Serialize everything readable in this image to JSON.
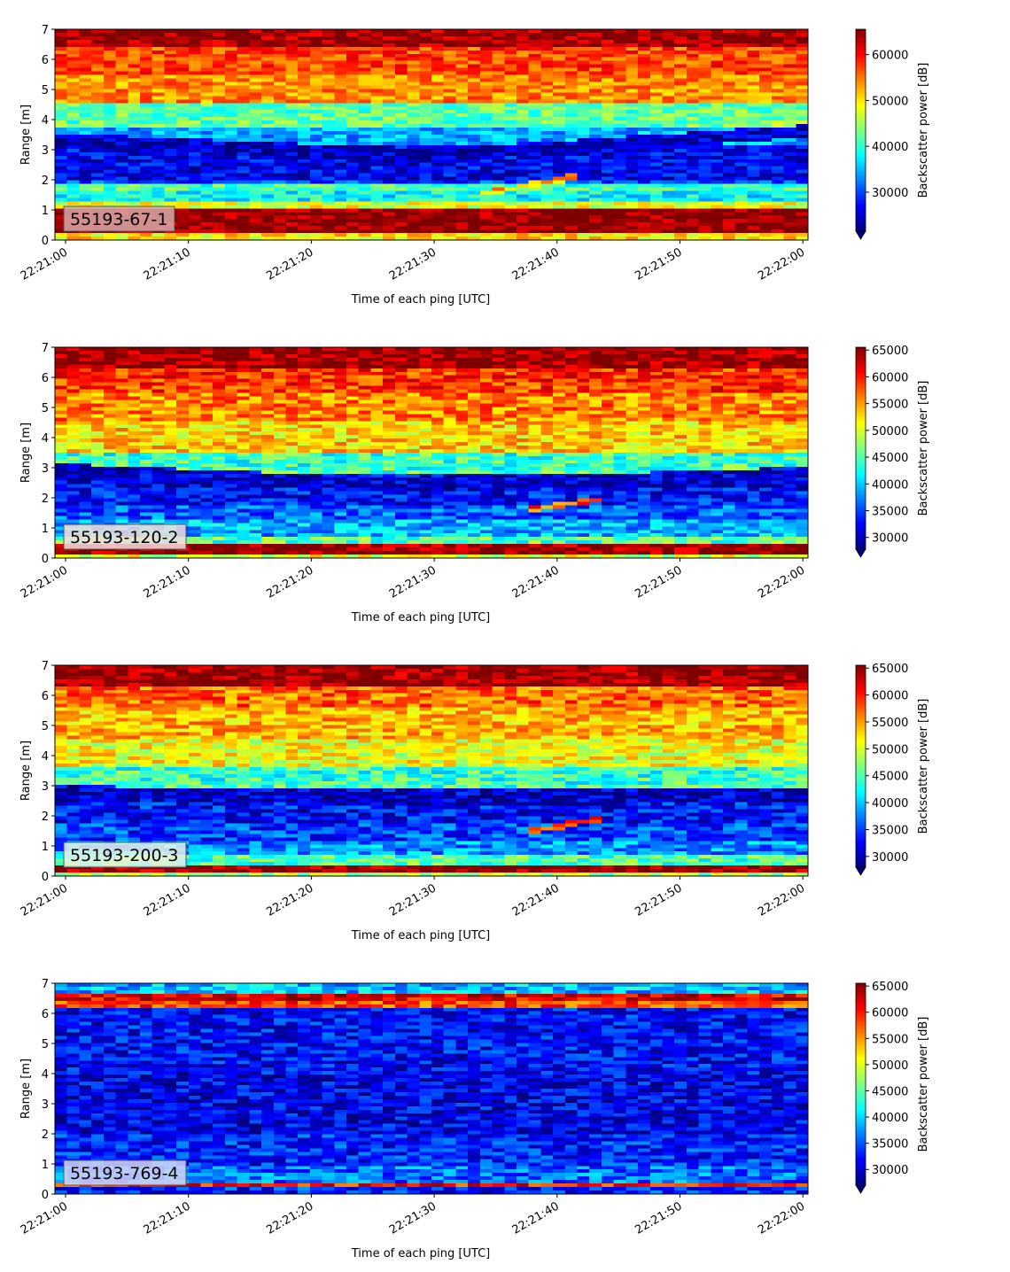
{
  "colormap": "jet",
  "colors": {
    "jet": [
      "#00007f",
      "#0000ff",
      "#007fff",
      "#00ffff",
      "#7fff7f",
      "#ffff00",
      "#ff7f00",
      "#ff0000",
      "#7f0000"
    ],
    "label_box_background": "#ffffff",
    "label_box_border": "#555555"
  },
  "chart_data": [
    {
      "type": "heatmap",
      "label": "55193-67-1",
      "label_box_color": "#dba8a8",
      "xlabel": "Time of each ping [UTC]",
      "ylabel": "Range [m]",
      "xticks": [
        "22:21:00",
        "22:21:10",
        "22:21:20",
        "22:21:30",
        "22:21:40",
        "22:21:50",
        "22:22:00"
      ],
      "yticks": [
        0,
        1,
        2,
        3,
        4,
        5,
        6,
        7
      ],
      "ylim": [
        0,
        7
      ],
      "colorbar_label": "Backscatter power [dB]",
      "colorbar_ticks": [
        30000,
        40000,
        50000,
        60000
      ],
      "clim": [
        21500,
        65535
      ],
      "bands": [
        {
          "y": [
            0.0,
            0.25
          ],
          "value": 50000
        },
        {
          "y": [
            0.25,
            1.05
          ],
          "value": 65000
        },
        {
          "y": [
            1.05,
            1.3
          ],
          "value": 48000
        },
        {
          "y": [
            1.3,
            1.65
          ],
          "value": 38000
        },
        {
          "y": [
            1.65,
            1.85
          ],
          "value": 41000
        },
        {
          "y": [
            1.85,
            2.0
          ],
          "value": 30000
        },
        {
          "y": [
            2.0,
            3.2
          ],
          "value": 26500
        },
        {
          "y": [
            3.2,
            3.7
          ],
          "value": 34500
        },
        {
          "y": [
            3.7,
            4.5
          ],
          "value": 42000
        },
        {
          "y": [
            4.5,
            5.5
          ],
          "value": 54000
        },
        {
          "y": [
            5.5,
            6.4
          ],
          "value": 57000
        },
        {
          "y": [
            6.4,
            7.0
          ],
          "value": 64000
        }
      ],
      "arc": {
        "times": [
          "22:21:00",
          "22:21:30",
          "22:22:00"
        ],
        "ranges": [
          3.3,
          2.8,
          3.6
        ],
        "value": 24500
      },
      "streak": {
        "times": [
          "22:21:34",
          "22:21:42"
        ],
        "ranges": [
          1.55,
          2.15
        ],
        "value": 52000
      }
    },
    {
      "type": "heatmap",
      "label": "55193-120-2",
      "label_box_color": "#f3dede",
      "xlabel": "Time of each ping [UTC]",
      "ylabel": "Range [m]",
      "xticks": [
        "22:21:00",
        "22:21:10",
        "22:21:20",
        "22:21:30",
        "22:21:40",
        "22:21:50",
        "22:22:00"
      ],
      "yticks": [
        0,
        1,
        2,
        3,
        4,
        5,
        6,
        7
      ],
      "ylim": [
        0,
        7
      ],
      "colorbar_label": "Backscatter power [dB]",
      "colorbar_ticks": [
        30000,
        35000,
        40000,
        45000,
        50000,
        55000,
        60000,
        65000
      ],
      "clim": [
        27800,
        65535
      ],
      "bands": [
        {
          "y": [
            0.0,
            0.15
          ],
          "value": 50000
        },
        {
          "y": [
            0.15,
            0.45
          ],
          "value": 65000
        },
        {
          "y": [
            0.45,
            0.75
          ],
          "value": 45000
        },
        {
          "y": [
            0.75,
            1.3
          ],
          "value": 39000
        },
        {
          "y": [
            1.3,
            1.8
          ],
          "value": 36000
        },
        {
          "y": [
            1.8,
            2.3
          ],
          "value": 33000
        },
        {
          "y": [
            2.3,
            2.8
          ],
          "value": 31000
        },
        {
          "y": [
            2.8,
            3.5
          ],
          "value": 44000
        },
        {
          "y": [
            3.5,
            4.5
          ],
          "value": 53000
        },
        {
          "y": [
            4.5,
            5.5
          ],
          "value": 56000
        },
        {
          "y": [
            5.5,
            6.3
          ],
          "value": 59000
        },
        {
          "y": [
            6.3,
            7.0
          ],
          "value": 65000
        }
      ],
      "arc": {
        "times": [
          "22:21:00",
          "22:21:30",
          "22:22:00"
        ],
        "ranges": [
          2.9,
          2.4,
          2.8
        ],
        "value": 30500
      },
      "streak": {
        "times": [
          "22:21:38",
          "22:21:44"
        ],
        "ranges": [
          1.6,
          1.95
        ],
        "value": 58000
      }
    },
    {
      "type": "heatmap",
      "label": "55193-200-3",
      "label_box_color": "#e6f2e6",
      "xlabel": "Time of each ping [UTC]",
      "ylabel": "Range [m]",
      "xticks": [
        "22:21:00",
        "22:21:10",
        "22:21:20",
        "22:21:30",
        "22:21:40",
        "22:21:50",
        "22:22:00"
      ],
      "yticks": [
        0,
        1,
        2,
        3,
        4,
        5,
        6,
        7
      ],
      "ylim": [
        0,
        7
      ],
      "colorbar_label": "Backscatter power [dB]",
      "colorbar_ticks": [
        30000,
        35000,
        40000,
        45000,
        50000,
        55000,
        60000,
        65000
      ],
      "clim": [
        28000,
        65535
      ],
      "bands": [
        {
          "y": [
            0.0,
            0.15
          ],
          "value": 48000
        },
        {
          "y": [
            0.15,
            0.4
          ],
          "value": 65000
        },
        {
          "y": [
            0.4,
            0.7
          ],
          "value": 45000
        },
        {
          "y": [
            0.7,
            1.2
          ],
          "value": 38000
        },
        {
          "y": [
            1.2,
            1.8
          ],
          "value": 35000
        },
        {
          "y": [
            1.8,
            2.4
          ],
          "value": 33000
        },
        {
          "y": [
            2.4,
            2.9
          ],
          "value": 31000
        },
        {
          "y": [
            2.9,
            3.6
          ],
          "value": 44000
        },
        {
          "y": [
            3.6,
            4.6
          ],
          "value": 51000
        },
        {
          "y": [
            4.6,
            5.6
          ],
          "value": 54000
        },
        {
          "y": [
            5.6,
            6.3
          ],
          "value": 57000
        },
        {
          "y": [
            6.3,
            7.0
          ],
          "value": 65000
        }
      ],
      "arc": {
        "times": [
          "22:21:00",
          "22:21:30",
          "22:22:00"
        ],
        "ranges": [
          2.8,
          2.5,
          2.7
        ],
        "value": 30000
      },
      "streak": {
        "times": [
          "22:21:38",
          "22:21:44"
        ],
        "ranges": [
          1.5,
          1.95
        ],
        "value": 58000
      }
    },
    {
      "type": "heatmap",
      "label": "55193-769-4",
      "label_box_color": "#d3d6f6",
      "xlabel": "Time of each ping [UTC]",
      "ylabel": "Range [m]",
      "xticks": [
        "22:21:00",
        "22:21:10",
        "22:21:20",
        "22:21:30",
        "22:21:40",
        "22:21:50",
        "22:22:00"
      ],
      "yticks": [
        0,
        1,
        2,
        3,
        4,
        5,
        6,
        7
      ],
      "ylim": [
        0,
        7
      ],
      "colorbar_label": "Backscatter power [dB]",
      "colorbar_ticks": [
        30000,
        35000,
        40000,
        45000,
        50000,
        55000,
        60000,
        65000
      ],
      "clim": [
        27000,
        65535
      ],
      "bands": [
        {
          "y": [
            0.0,
            0.18
          ],
          "value": 33000
        },
        {
          "y": [
            0.18,
            0.38
          ],
          "value": 60000
        },
        {
          "y": [
            0.38,
            0.9
          ],
          "value": 36000
        },
        {
          "y": [
            0.9,
            2.0
          ],
          "value": 33000
        },
        {
          "y": [
            2.0,
            4.0
          ],
          "value": 31000
        },
        {
          "y": [
            4.0,
            6.2
          ],
          "value": 32000
        },
        {
          "y": [
            6.2,
            6.4
          ],
          "value": 58000
        },
        {
          "y": [
            6.4,
            6.6
          ],
          "value": 62000
        },
        {
          "y": [
            6.6,
            7.0
          ],
          "value": 39000
        }
      ]
    }
  ]
}
